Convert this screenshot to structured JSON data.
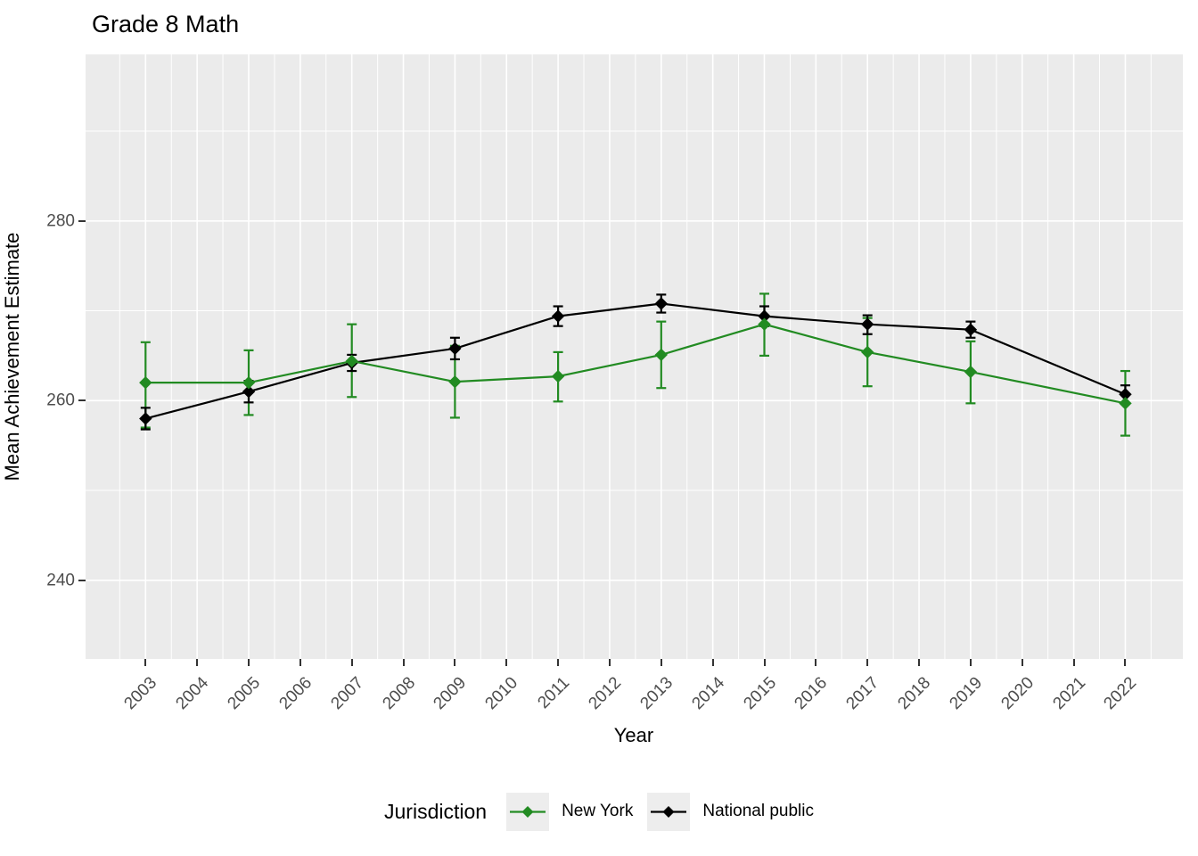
{
  "title": "Grade 8 Math",
  "axes": {
    "x": {
      "label": "Year",
      "ticks": [
        2003,
        2004,
        2005,
        2006,
        2007,
        2008,
        2009,
        2010,
        2011,
        2012,
        2013,
        2014,
        2015,
        2016,
        2017,
        2018,
        2019,
        2020,
        2021,
        2022
      ]
    },
    "y": {
      "label": "Mean Achievement Estimate",
      "ticks": [
        240,
        260,
        280
      ],
      "minor_ticks": [
        250,
        270,
        290
      ]
    }
  },
  "legend": {
    "title": "Jurisdiction",
    "items": [
      {
        "label": "New York",
        "color": "#228B22"
      },
      {
        "label": "National public",
        "color": "#000000"
      }
    ]
  },
  "colors": {
    "panel_background": "#EBEBEB",
    "gridline": "#FFFFFF",
    "axis_text": "#4D4D4D",
    "tick_mark": "#333333",
    "legend_key_background": "#EDEDED",
    "new_york": "#228B22",
    "national_public": "#000000"
  },
  "chart_data": {
    "type": "line",
    "title": "Grade 8 Math",
    "xlabel": "Year",
    "ylabel": "Mean Achievement Estimate",
    "x": [
      2003,
      2005,
      2007,
      2009,
      2011,
      2013,
      2015,
      2017,
      2019,
      2022
    ],
    "x_axis_ticks": [
      2003,
      2004,
      2005,
      2006,
      2007,
      2008,
      2009,
      2010,
      2011,
      2012,
      2013,
      2014,
      2015,
      2016,
      2017,
      2018,
      2019,
      2020,
      2021,
      2022
    ],
    "xlim": [
      2001.8,
      2023.1
    ],
    "ylim": [
      231.3,
      298.5
    ],
    "yticks": [
      240,
      260,
      280
    ],
    "grid": true,
    "error_bars": true,
    "legend_position": "bottom",
    "point_shape": "diamond",
    "series": [
      {
        "name": "New York",
        "color": "#228B22",
        "values": [
          262.0,
          262.0,
          264.4,
          262.1,
          262.7,
          265.1,
          268.5,
          265.4,
          263.2,
          259.7
        ],
        "ci_low": [
          257.0,
          258.4,
          260.4,
          258.1,
          259.9,
          261.4,
          265.0,
          261.6,
          259.7,
          256.1
        ],
        "ci_high": [
          266.5,
          265.6,
          268.5,
          266.1,
          265.4,
          268.8,
          271.9,
          269.2,
          266.6,
          263.3
        ]
      },
      {
        "name": "National public",
        "color": "#000000",
        "values": [
          258.0,
          261.0,
          264.2,
          265.8,
          269.4,
          270.8,
          269.4,
          268.5,
          267.9,
          260.7
        ],
        "ci_low": [
          256.8,
          259.8,
          263.3,
          264.6,
          268.3,
          269.8,
          268.3,
          267.4,
          267.0,
          259.7
        ],
        "ci_high": [
          259.2,
          262.2,
          265.1,
          267.0,
          270.5,
          271.8,
          270.5,
          269.5,
          268.8,
          261.7
        ]
      }
    ]
  }
}
